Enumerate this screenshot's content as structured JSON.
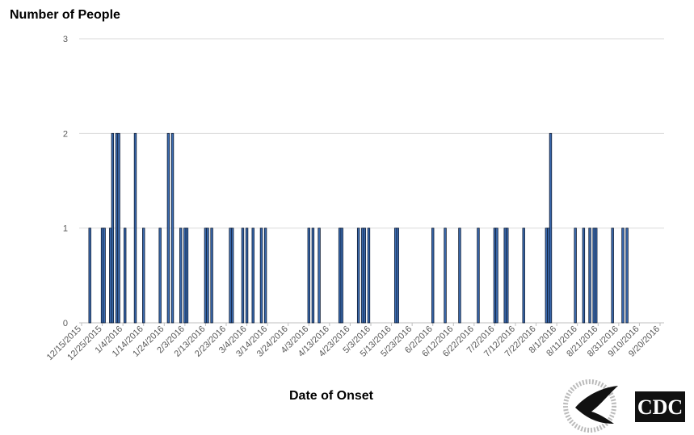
{
  "chart_data": {
    "type": "bar",
    "title": "Number of People",
    "x_label": "Date of Onset",
    "x": [
      "12/19/2015",
      "12/25/2015",
      "12/26/2015",
      "12/29/2015",
      "12/30/2015",
      "1/1/2016",
      "1/2/2016",
      "1/5/2016",
      "1/10/2016",
      "1/14/2016",
      "1/22/2016",
      "1/26/2016",
      "1/28/2016",
      "2/1/2016",
      "2/3/2016",
      "2/4/2016",
      "2/13/2016",
      "2/14/2016",
      "2/16/2016",
      "2/25/2016",
      "2/26/2016",
      "3/2/2016",
      "3/4/2016",
      "3/7/2016",
      "3/11/2016",
      "3/13/2016",
      "4/3/2016",
      "4/5/2016",
      "4/8/2016",
      "4/18/2016",
      "4/19/2016",
      "4/27/2016",
      "4/29/2016",
      "4/30/2016",
      "5/2/2016",
      "5/15/2016",
      "5/16/2016",
      "6/2/2016",
      "6/8/2016",
      "6/15/2016",
      "6/24/2016",
      "7/2/2016",
      "7/3/2016",
      "7/7/2016",
      "7/8/2016",
      "7/16/2016",
      "7/27/2016",
      "7/28/2016",
      "7/29/2016",
      "8/10/2016",
      "8/14/2016",
      "8/17/2016",
      "8/19/2016",
      "8/20/2016",
      "8/28/2016",
      "9/2/2016",
      "9/4/2016"
    ],
    "values": [
      1,
      1,
      1,
      1,
      2,
      2,
      2,
      1,
      2,
      1,
      1,
      2,
      2,
      1,
      1,
      1,
      1,
      1,
      1,
      1,
      1,
      1,
      1,
      1,
      1,
      1,
      1,
      1,
      1,
      1,
      1,
      1,
      1,
      1,
      1,
      1,
      1,
      1,
      1,
      1,
      1,
      1,
      1,
      1,
      1,
      1,
      1,
      1,
      2,
      1,
      1,
      1,
      1,
      1,
      1,
      1,
      1
    ],
    "color": "#3b6bb0",
    "xlim": [
      "12/15/2015",
      "9/20/2016"
    ],
    "xticks": [
      "12/15/2015",
      "12/25/2015",
      "1/4/2016",
      "1/14/2016",
      "1/24/2016",
      "2/3/2016",
      "2/13/2016",
      "2/23/2016",
      "3/4/2016",
      "3/14/2016",
      "3/24/2016",
      "4/3/2016",
      "4/13/2016",
      "4/23/2016",
      "5/3/2016",
      "5/13/2016",
      "5/23/2016",
      "6/2/2016",
      "6/12/2016",
      "6/22/2016",
      "7/2/2016",
      "7/12/2016",
      "7/22/2016",
      "8/1/2016",
      "8/11/2016",
      "8/21/2016",
      "8/31/2016",
      "9/10/2016",
      "9/20/2016"
    ],
    "ylim": [
      0,
      3
    ],
    "yticks": [
      0,
      1,
      2,
      3
    ],
    "grid": true
  },
  "logo_text": "CDC"
}
